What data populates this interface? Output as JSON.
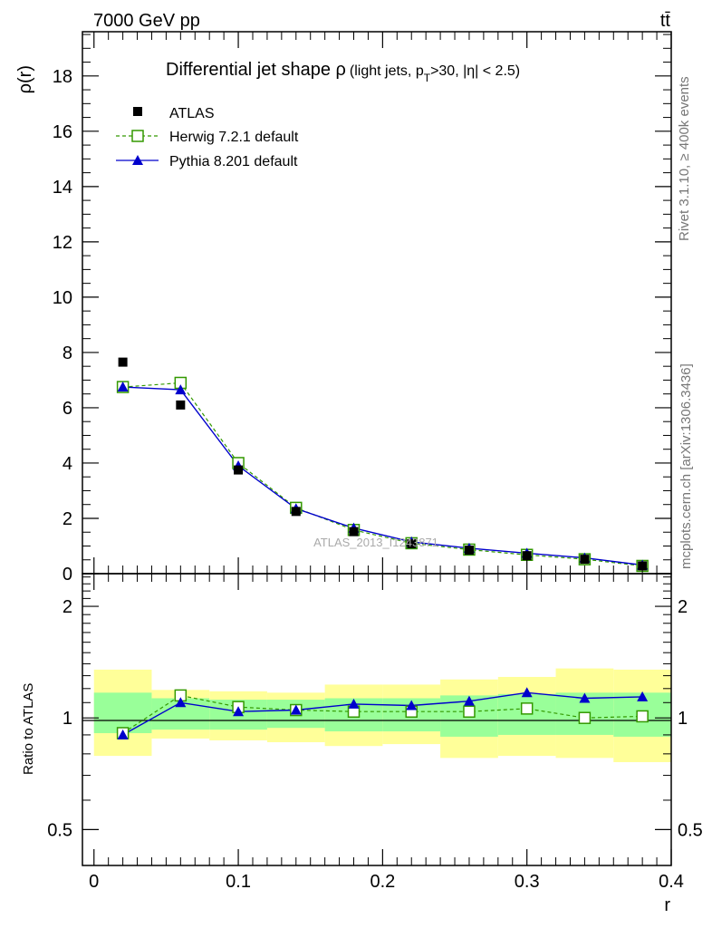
{
  "header": {
    "left": "7000 GeV pp",
    "right": "tt̄"
  },
  "side": {
    "rivet": "Rivet 3.1.10, ≥ 400k events",
    "mcplots": "mcplots.cern.ch [arXiv:1306.3436]"
  },
  "colors": {
    "atlas": "#000000",
    "herwig": "#339900",
    "pythia": "#0000cc",
    "band_inner": "#99ff99",
    "band_outer": "#ffff99"
  },
  "chart_data": [
    {
      "type": "scatter",
      "title_main": "Differential jet shape ρ",
      "title_sub": "(light jets, p",
      "title_sub_subscript": "T",
      "title_sub_rest": ">30, |η| < 2.5)",
      "ylabel": "ρ(r)",
      "xlabel": "",
      "watermark": "ATLAS_2013_I1243871",
      "xlim": [
        -0.008,
        0.4
      ],
      "ylim": [
        0,
        19.6
      ],
      "yticks": [
        0,
        2,
        4,
        6,
        8,
        10,
        12,
        14,
        16,
        18
      ],
      "ytick_labels": [
        "0",
        "2",
        "4",
        "6",
        "8",
        "10",
        "12",
        "14",
        "16",
        "18"
      ],
      "x": [
        0.02,
        0.06,
        0.1,
        0.14,
        0.18,
        0.22,
        0.26,
        0.3,
        0.34,
        0.38
      ],
      "bins": [
        [
          0,
          0.04
        ],
        [
          0.04,
          0.08
        ],
        [
          0.08,
          0.12
        ],
        [
          0.12,
          0.16
        ],
        [
          0.16,
          0.2
        ],
        [
          0.2,
          0.24
        ],
        [
          0.24,
          0.28
        ],
        [
          0.28,
          0.32
        ],
        [
          0.32,
          0.36
        ],
        [
          0.36,
          0.4
        ]
      ],
      "legend_position": "top-left",
      "series": [
        {
          "name": "ATLAS",
          "marker": "filled-square",
          "values": [
            7.65,
            6.1,
            3.75,
            2.25,
            1.52,
            1.08,
            0.85,
            0.65,
            0.52,
            0.28
          ]
        },
        {
          "name": "Herwig 7.2.1 default",
          "marker": "open-square",
          "line": "dashed",
          "values": [
            6.75,
            6.9,
            4.0,
            2.38,
            1.58,
            1.1,
            0.87,
            0.68,
            0.52,
            0.28
          ]
        },
        {
          "name": "Pythia 8.201 default",
          "marker": "filled-triangle",
          "line": "solid",
          "values": [
            6.75,
            6.65,
            3.9,
            2.35,
            1.65,
            1.15,
            0.92,
            0.74,
            0.57,
            0.31
          ]
        }
      ]
    },
    {
      "type": "line",
      "ylabel": "Ratio to ATLAS",
      "xlabel": "r",
      "xlim": [
        -0.008,
        0.4
      ],
      "ylim": [
        0.4,
        2.45
      ],
      "xticks": [
        0,
        0.1,
        0.2,
        0.3,
        0.4
      ],
      "xtick_labels": [
        "0",
        "0.1",
        "0.2",
        "0.3",
        "0.4"
      ],
      "yticks": [
        0.5,
        1,
        2
      ],
      "ytick_labels": [
        "0.5",
        "1",
        "2"
      ],
      "x": [
        0.02,
        0.06,
        0.1,
        0.14,
        0.18,
        0.22,
        0.26,
        0.3,
        0.34,
        0.38
      ],
      "bins": [
        [
          0,
          0.04
        ],
        [
          0.04,
          0.08
        ],
        [
          0.08,
          0.12
        ],
        [
          0.12,
          0.16
        ],
        [
          0.16,
          0.2
        ],
        [
          0.2,
          0.24
        ],
        [
          0.24,
          0.28
        ],
        [
          0.28,
          0.32
        ],
        [
          0.32,
          0.36
        ],
        [
          0.36,
          0.4
        ]
      ],
      "band_inner_low": [
        0.91,
        0.93,
        0.93,
        0.94,
        0.92,
        0.92,
        0.89,
        0.9,
        0.9,
        0.89
      ],
      "band_inner_high": [
        1.17,
        1.13,
        1.12,
        1.12,
        1.13,
        1.13,
        1.15,
        1.16,
        1.17,
        1.17
      ],
      "band_outer_low": [
        0.79,
        0.88,
        0.87,
        0.86,
        0.84,
        0.85,
        0.78,
        0.79,
        0.78,
        0.76
      ],
      "band_outer_high": [
        1.35,
        1.19,
        1.18,
        1.17,
        1.23,
        1.23,
        1.27,
        1.29,
        1.36,
        1.35
      ],
      "series": [
        {
          "name": "Herwig 7.2.1 default",
          "marker": "open-square",
          "line": "dashed",
          "values": [
            0.91,
            1.15,
            1.07,
            1.05,
            1.04,
            1.04,
            1.04,
            1.06,
            1.0,
            1.01
          ]
        },
        {
          "name": "Pythia 8.201 default",
          "marker": "filled-triangle",
          "line": "solid",
          "values": [
            0.9,
            1.1,
            1.04,
            1.05,
            1.09,
            1.08,
            1.11,
            1.17,
            1.13,
            1.14
          ]
        }
      ]
    }
  ]
}
